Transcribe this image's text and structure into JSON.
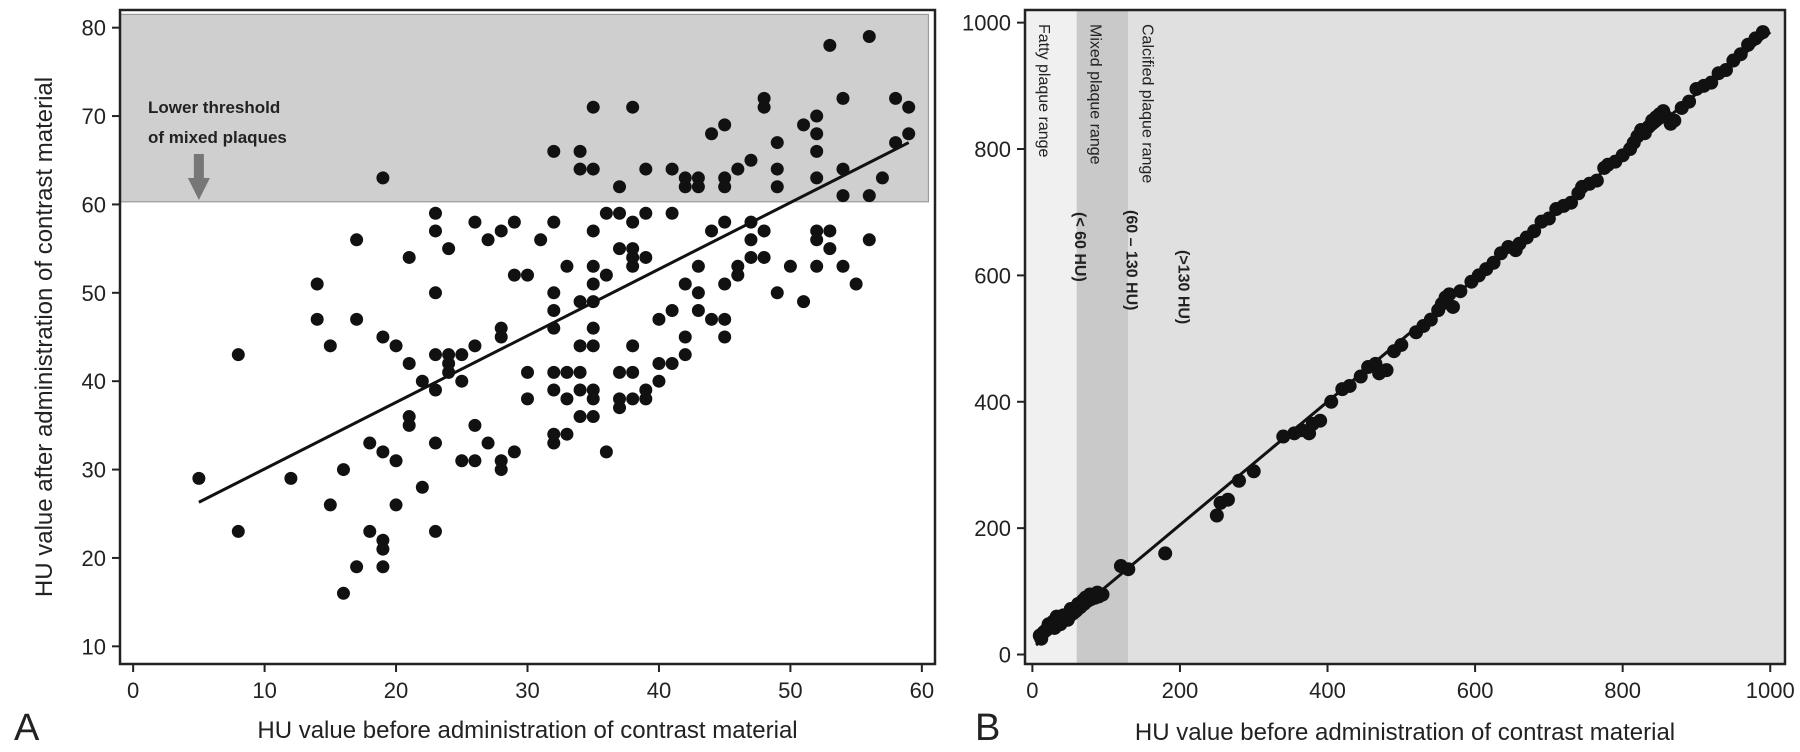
{
  "chart_data": [
    {
      "type": "scatter",
      "panel": "A",
      "xlabel": "HU value before administration of contrast material",
      "ylabel": "HU value after administration of contrast material",
      "xlim": [
        -1,
        61
      ],
      "ylim": [
        8,
        82
      ],
      "xticks": [
        0,
        10,
        20,
        30,
        40,
        50,
        60
      ],
      "yticks": [
        10,
        20,
        30,
        40,
        50,
        60,
        70,
        80
      ],
      "grid": false,
      "shaded_region": {
        "x": [
          -1,
          60.5
        ],
        "y": [
          60.3,
          81.5
        ],
        "color": "#cfcfcf"
      },
      "annotation": {
        "lines": [
          "Lower threshold",
          "of mixed plaques"
        ],
        "arrow_at": {
          "x": 5,
          "y": 60.5
        }
      },
      "regression_line": [
        [
          5,
          26.3
        ],
        [
          59,
          67
        ]
      ],
      "points": [
        [
          5,
          29
        ],
        [
          8,
          43
        ],
        [
          8,
          23
        ],
        [
          12,
          29
        ],
        [
          14,
          51
        ],
        [
          14,
          47
        ],
        [
          15,
          44
        ],
        [
          15,
          26
        ],
        [
          16,
          30
        ],
        [
          16,
          16
        ],
        [
          17,
          56
        ],
        [
          17,
          47
        ],
        [
          17,
          19
        ],
        [
          18,
          33
        ],
        [
          18,
          23
        ],
        [
          19,
          63
        ],
        [
          19,
          45
        ],
        [
          19,
          32
        ],
        [
          19,
          22
        ],
        [
          19,
          21
        ],
        [
          19,
          19
        ],
        [
          20,
          44
        ],
        [
          20,
          31
        ],
        [
          20,
          26
        ],
        [
          21,
          54
        ],
        [
          21,
          42
        ],
        [
          21,
          36
        ],
        [
          21,
          35
        ],
        [
          22,
          40
        ],
        [
          22,
          28
        ],
        [
          23,
          59
        ],
        [
          23,
          57
        ],
        [
          23,
          50
        ],
        [
          23,
          43
        ],
        [
          23,
          39
        ],
        [
          23,
          33
        ],
        [
          23,
          23
        ],
        [
          24,
          55
        ],
        [
          24,
          43
        ],
        [
          24,
          42
        ],
        [
          24,
          41
        ],
        [
          25,
          43
        ],
        [
          25,
          40
        ],
        [
          25,
          31
        ],
        [
          26,
          58
        ],
        [
          26,
          44
        ],
        [
          26,
          35
        ],
        [
          26,
          31
        ],
        [
          27,
          56
        ],
        [
          27,
          33
        ],
        [
          28,
          57
        ],
        [
          28,
          46
        ],
        [
          28,
          45
        ],
        [
          28,
          31
        ],
        [
          28,
          30
        ],
        [
          29,
          58
        ],
        [
          29,
          52
        ],
        [
          29,
          32
        ],
        [
          30,
          52
        ],
        [
          30,
          41
        ],
        [
          30,
          38
        ],
        [
          31,
          56
        ],
        [
          32,
          66
        ],
        [
          32,
          58
        ],
        [
          32,
          50
        ],
        [
          32,
          48
        ],
        [
          32,
          46
        ],
        [
          32,
          41
        ],
        [
          32,
          39
        ],
        [
          32,
          34
        ],
        [
          32,
          33
        ],
        [
          33,
          53
        ],
        [
          33,
          41
        ],
        [
          33,
          38
        ],
        [
          33,
          34
        ],
        [
          34,
          66
        ],
        [
          34,
          64
        ],
        [
          34,
          49
        ],
        [
          34,
          44
        ],
        [
          34,
          41
        ],
        [
          34,
          39
        ],
        [
          34,
          36
        ],
        [
          35,
          71
        ],
        [
          35,
          64
        ],
        [
          35,
          57
        ],
        [
          35,
          53
        ],
        [
          35,
          51
        ],
        [
          35,
          49
        ],
        [
          35,
          46
        ],
        [
          35,
          44
        ],
        [
          35,
          39
        ],
        [
          35,
          38
        ],
        [
          35,
          36
        ],
        [
          36,
          59
        ],
        [
          36,
          52
        ],
        [
          36,
          32
        ],
        [
          37,
          62
        ],
        [
          37,
          59
        ],
        [
          37,
          55
        ],
        [
          37,
          41
        ],
        [
          37,
          38
        ],
        [
          37,
          37
        ],
        [
          38,
          71
        ],
        [
          38,
          58
        ],
        [
          38,
          55
        ],
        [
          38,
          54
        ],
        [
          38,
          53
        ],
        [
          38,
          44
        ],
        [
          38,
          41
        ],
        [
          38,
          38
        ],
        [
          39,
          64
        ],
        [
          39,
          59
        ],
        [
          39,
          54
        ],
        [
          39,
          39
        ],
        [
          39,
          38
        ],
        [
          40,
          47
        ],
        [
          40,
          42
        ],
        [
          40,
          40
        ],
        [
          41,
          64
        ],
        [
          41,
          59
        ],
        [
          41,
          48
        ],
        [
          41,
          42
        ],
        [
          42,
          62
        ],
        [
          42,
          63
        ],
        [
          42,
          51
        ],
        [
          42,
          45
        ],
        [
          42,
          43
        ],
        [
          43,
          63
        ],
        [
          43,
          62
        ],
        [
          43,
          53
        ],
        [
          43,
          50
        ],
        [
          43,
          48
        ],
        [
          44,
          68
        ],
        [
          44,
          57
        ],
        [
          44,
          47
        ],
        [
          45,
          69
        ],
        [
          45,
          63
        ],
        [
          45,
          62
        ],
        [
          45,
          58
        ],
        [
          45,
          51
        ],
        [
          45,
          47
        ],
        [
          45,
          45
        ],
        [
          46,
          64
        ],
        [
          46,
          53
        ],
        [
          46,
          52
        ],
        [
          47,
          65
        ],
        [
          47,
          58
        ],
        [
          47,
          56
        ],
        [
          47,
          54
        ],
        [
          48,
          72
        ],
        [
          48,
          71
        ],
        [
          48,
          57
        ],
        [
          48,
          54
        ],
        [
          49,
          67
        ],
        [
          49,
          64
        ],
        [
          49,
          62
        ],
        [
          49,
          50
        ],
        [
          50,
          53
        ],
        [
          51,
          69
        ],
        [
          51,
          49
        ],
        [
          52,
          70
        ],
        [
          52,
          68
        ],
        [
          52,
          66
        ],
        [
          52,
          63
        ],
        [
          52,
          57
        ],
        [
          52,
          56
        ],
        [
          52,
          53
        ],
        [
          53,
          78
        ],
        [
          53,
          57
        ],
        [
          53,
          55
        ],
        [
          54,
          72
        ],
        [
          54,
          64
        ],
        [
          54,
          61
        ],
        [
          54,
          53
        ],
        [
          55,
          51
        ],
        [
          56,
          79
        ],
        [
          56,
          61
        ],
        [
          56,
          56
        ],
        [
          57,
          63
        ],
        [
          58,
          72
        ],
        [
          58,
          67
        ],
        [
          59,
          71
        ],
        [
          59,
          68
        ]
      ]
    },
    {
      "type": "scatter",
      "panel": "B",
      "xlabel": "HU value before administration of contrast material",
      "ylabel": "",
      "xlim": [
        -10,
        1020
      ],
      "ylim": [
        -15,
        1020
      ],
      "xticks": [
        0,
        200,
        400,
        600,
        800,
        1000
      ],
      "yticks": [
        0,
        200,
        400,
        600,
        800,
        1000
      ],
      "grid": false,
      "bands": [
        {
          "x": [
            -10,
            60
          ],
          "color": "#f0f0f0",
          "label": "Fatty plaque range",
          "range_label": "(< 60 HU)"
        },
        {
          "x": [
            60,
            130
          ],
          "color": "#c9c9c9",
          "label": "Mixed plaque range",
          "range_label": "(60 – 130 HU)"
        },
        {
          "x": [
            130,
            1020
          ],
          "color": "#e0e0e0",
          "label": "Calcified plaque range",
          "range_label": "(>130 HU)"
        }
      ],
      "regression_line": [
        [
          5,
          15
        ],
        [
          1000,
          985
        ]
      ],
      "points": [
        [
          10,
          30
        ],
        [
          15,
          35
        ],
        [
          20,
          40
        ],
        [
          25,
          45
        ],
        [
          30,
          42
        ],
        [
          35,
          50
        ],
        [
          40,
          55
        ],
        [
          45,
          58
        ],
        [
          50,
          60
        ],
        [
          55,
          65
        ],
        [
          60,
          70
        ],
        [
          65,
          75
        ],
        [
          70,
          80
        ],
        [
          75,
          85
        ],
        [
          80,
          88
        ],
        [
          85,
          90
        ],
        [
          90,
          92
        ],
        [
          95,
          95
        ],
        [
          12,
          25
        ],
        [
          18,
          38
        ],
        [
          22,
          48
        ],
        [
          28,
          52
        ],
        [
          33,
          60
        ],
        [
          38,
          48
        ],
        [
          42,
          62
        ],
        [
          48,
          55
        ],
        [
          52,
          72
        ],
        [
          58,
          68
        ],
        [
          62,
          80
        ],
        [
          68,
          85
        ],
        [
          72,
          90
        ],
        [
          78,
          95
        ],
        [
          82,
          92
        ],
        [
          88,
          98
        ],
        [
          120,
          140
        ],
        [
          130,
          135
        ],
        [
          180,
          160
        ],
        [
          250,
          220
        ],
        [
          255,
          240
        ],
        [
          265,
          245
        ],
        [
          280,
          275
        ],
        [
          300,
          290
        ],
        [
          340,
          345
        ],
        [
          355,
          350
        ],
        [
          365,
          355
        ],
        [
          375,
          350
        ],
        [
          380,
          365
        ],
        [
          390,
          370
        ],
        [
          405,
          400
        ],
        [
          420,
          420
        ],
        [
          430,
          425
        ],
        [
          445,
          440
        ],
        [
          455,
          455
        ],
        [
          465,
          460
        ],
        [
          470,
          445
        ],
        [
          480,
          450
        ],
        [
          490,
          480
        ],
        [
          500,
          490
        ],
        [
          520,
          510
        ],
        [
          530,
          520
        ],
        [
          540,
          530
        ],
        [
          550,
          545
        ],
        [
          555,
          555
        ],
        [
          560,
          565
        ],
        [
          565,
          570
        ],
        [
          570,
          550
        ],
        [
          580,
          575
        ],
        [
          595,
          590
        ],
        [
          605,
          600
        ],
        [
          615,
          610
        ],
        [
          625,
          620
        ],
        [
          635,
          635
        ],
        [
          645,
          645
        ],
        [
          655,
          640
        ],
        [
          660,
          650
        ],
        [
          670,
          660
        ],
        [
          680,
          670
        ],
        [
          690,
          685
        ],
        [
          700,
          690
        ],
        [
          710,
          705
        ],
        [
          720,
          710
        ],
        [
          730,
          715
        ],
        [
          740,
          730
        ],
        [
          745,
          740
        ],
        [
          755,
          745
        ],
        [
          765,
          750
        ],
        [
          775,
          770
        ],
        [
          780,
          775
        ],
        [
          790,
          780
        ],
        [
          800,
          790
        ],
        [
          810,
          800
        ],
        [
          815,
          810
        ],
        [
          820,
          820
        ],
        [
          825,
          830
        ],
        [
          830,
          825
        ],
        [
          835,
          835
        ],
        [
          840,
          845
        ],
        [
          845,
          850
        ],
        [
          850,
          855
        ],
        [
          855,
          860
        ],
        [
          860,
          850
        ],
        [
          865,
          840
        ],
        [
          870,
          845
        ],
        [
          880,
          865
        ],
        [
          890,
          875
        ],
        [
          900,
          895
        ],
        [
          910,
          900
        ],
        [
          920,
          905
        ],
        [
          930,
          920
        ],
        [
          940,
          925
        ],
        [
          950,
          940
        ],
        [
          960,
          950
        ],
        [
          970,
          965
        ],
        [
          980,
          975
        ],
        [
          990,
          985
        ]
      ]
    }
  ],
  "panels": {
    "a": {
      "letter": "A"
    },
    "b": {
      "letter": "B"
    }
  }
}
